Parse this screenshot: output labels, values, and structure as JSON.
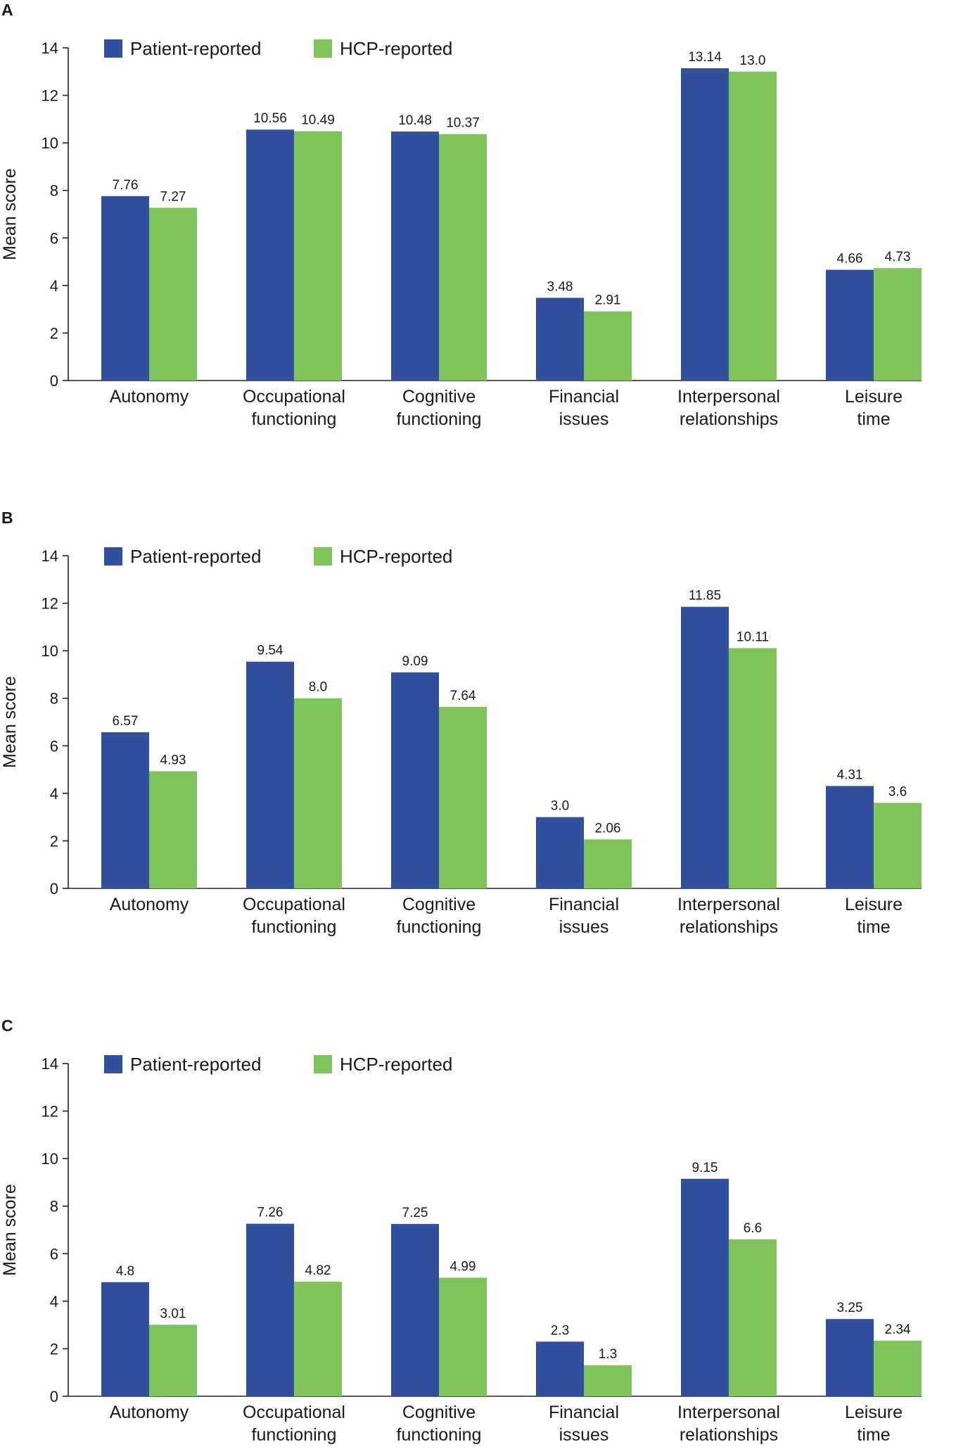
{
  "colors": {
    "patient": "#31509e",
    "hcp": "#7fc45a",
    "axis": "#222222"
  },
  "legend": {
    "patient_label": "Patient-reported",
    "hcp_label": "HCP-reported"
  },
  "chart_data": [
    {
      "type": "bar",
      "panel_label": "A",
      "ylabel": "Mean score",
      "ylim": [
        0,
        14
      ],
      "yticks": [
        0,
        2,
        4,
        6,
        8,
        10,
        12,
        14
      ],
      "categories": [
        [
          "Autonomy"
        ],
        [
          "Occupational",
          "functioning"
        ],
        [
          "Cognitive",
          "functioning"
        ],
        [
          "Financial",
          "issues"
        ],
        [
          "Interpersonal",
          "relationships"
        ],
        [
          "Leisure",
          "time"
        ]
      ],
      "series": [
        {
          "name": "Patient-reported",
          "values": [
            7.76,
            10.56,
            10.48,
            3.48,
            13.14,
            4.66
          ],
          "labels": [
            "7.76",
            "10.56",
            "10.48",
            "3.48",
            "13.14",
            "4.66"
          ]
        },
        {
          "name": "HCP-reported",
          "values": [
            7.27,
            10.49,
            10.37,
            2.91,
            13.0,
            4.73
          ],
          "labels": [
            "7.27",
            "10.49",
            "10.37",
            "2.91",
            "13.0",
            "4.73"
          ]
        }
      ]
    },
    {
      "type": "bar",
      "panel_label": "B",
      "ylabel": "Mean score",
      "ylim": [
        0,
        14
      ],
      "yticks": [
        0,
        2,
        4,
        6,
        8,
        10,
        12,
        14
      ],
      "categories": [
        [
          "Autonomy"
        ],
        [
          "Occupational",
          "functioning"
        ],
        [
          "Cognitive",
          "functioning"
        ],
        [
          "Financial",
          "issues"
        ],
        [
          "Interpersonal",
          "relationships"
        ],
        [
          "Leisure",
          "time"
        ]
      ],
      "series": [
        {
          "name": "Patient-reported",
          "values": [
            6.57,
            9.54,
            9.09,
            3.0,
            11.85,
            4.31
          ],
          "labels": [
            "6.57",
            "9.54",
            "9.09",
            "3.0",
            "11.85",
            "4.31"
          ]
        },
        {
          "name": "HCP-reported",
          "values": [
            4.93,
            8.0,
            7.64,
            2.06,
            10.11,
            3.6
          ],
          "labels": [
            "4.93",
            "8.0",
            "7.64",
            "2.06",
            "10.11",
            "3.6"
          ]
        }
      ]
    },
    {
      "type": "bar",
      "panel_label": "C",
      "ylabel": "Mean score",
      "ylim": [
        0,
        14
      ],
      "yticks": [
        0,
        2,
        4,
        6,
        8,
        10,
        12,
        14
      ],
      "categories": [
        [
          "Autonomy"
        ],
        [
          "Occupational",
          "functioning"
        ],
        [
          "Cognitive",
          "functioning"
        ],
        [
          "Financial",
          "issues"
        ],
        [
          "Interpersonal",
          "relationships"
        ],
        [
          "Leisure",
          "time"
        ]
      ],
      "series": [
        {
          "name": "Patient-reported",
          "values": [
            4.8,
            7.26,
            7.25,
            2.3,
            9.15,
            3.25
          ],
          "labels": [
            "4.8",
            "7.26",
            "7.25",
            "2.3",
            "9.15",
            "3.25"
          ]
        },
        {
          "name": "HCP-reported",
          "values": [
            3.01,
            4.82,
            4.99,
            1.3,
            6.6,
            2.34
          ],
          "labels": [
            "3.01",
            "4.82",
            "4.99",
            "1.3",
            "6.6",
            "2.34"
          ]
        }
      ]
    }
  ]
}
